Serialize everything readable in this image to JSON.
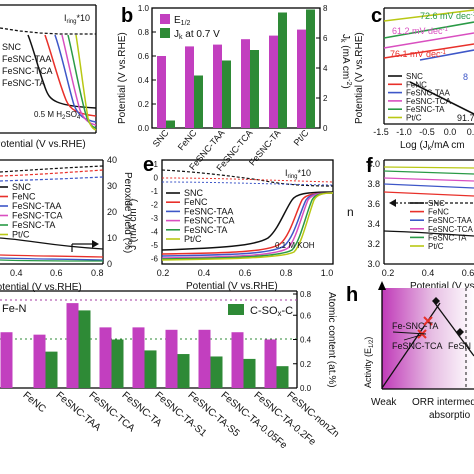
{
  "panel_letters": {
    "b": "b",
    "c": "c",
    "e": "e",
    "f": "f",
    "h": "h"
  },
  "panel_a": {
    "legend": [
      "SNC",
      "FeSNC-TAA",
      "FeSNC-TCA",
      "FeSNC-TA"
    ],
    "annotation": "I",
    "annotation_sub": "ring",
    "annotation_tail": "*10",
    "electrolyte": "0.5 M H",
    "electrolyte_sub": "2",
    "electrolyte_tail": "SO",
    "electrolyte_sub2": "4",
    "xlabel": "Potential (V vs.RHE)"
  },
  "panel_b": {
    "legend_e": "E",
    "legend_e_sub": "1/2",
    "legend_j": "J",
    "legend_j_sub": "k",
    "legend_j_tail": " at 0.7 V",
    "ylabel_left": "Potential (V vs.RHE)",
    "ylabel_right": "J",
    "ylabel_right_sub": "k",
    "ylabel_right_tail": " (mA cm",
    "ylabel_right_sup": "-2",
    "ylabel_right_end": ")",
    "yticks_left": [
      "0.0",
      "0.2",
      "0.4",
      "0.6",
      "0.8",
      "1.0"
    ],
    "yticks_right": [
      "0",
      "2",
      "4",
      "6",
      "8"
    ]
  },
  "panel_c": {
    "slopes": [
      "72.6 mV dec",
      "61.2 mV dec",
      "76.1 mV dec",
      "91.7"
    ],
    "slope_sup": "-1",
    "legend": [
      "SNC",
      "FeNC",
      "FeSNC-TAA",
      "FeSNC-TCA",
      "FeSNC-TA",
      "Pt/C"
    ],
    "xlabel": "Log (J",
    "xlabel_sub": "k",
    "xlabel_tail": "/mA cm",
    "xticks": [
      "-1.5",
      "-1.0",
      "-0.5",
      "0.0",
      "0.5"
    ],
    "ylabel": "Potential (V vs.RHE)",
    "side_label": "8"
  },
  "panel_d": {
    "legend": [
      "SNC",
      "FeNC",
      "FeSNC-TAA",
      "FeSNC-TCA",
      "FeSNC-TA",
      "Pt/C"
    ],
    "xticks": [
      "0.4",
      "0.6",
      "0.8"
    ],
    "xlabel": "Potential (V vs.RHE)",
    "ylabel_right": "Peroxide yield (%)",
    "yticks_right": [
      "0",
      "10",
      "20",
      "30",
      "40"
    ]
  },
  "panel_e": {
    "legend": [
      "SNC",
      "FeNC",
      "FeSNC-TAA",
      "FeSNC-TCA",
      "FeSNC-TA",
      "Pt/C"
    ],
    "annotation": "I",
    "annotation_sub": "ring",
    "annotation_tail": "*10",
    "electrolyte": "0.1 M KOH",
    "xlabel": "Potential (V vs.RHE)",
    "xticks": [
      "0.2",
      "0.4",
      "0.6",
      "0.8",
      "1.0"
    ],
    "ylabel": "J (mA cm",
    "ylabel_sup": "-2",
    "ylabel_end": ")",
    "yticks": [
      "1",
      "0",
      "-1",
      "-2",
      "-3",
      "-4",
      "-5",
      "-6"
    ]
  },
  "panel_f": {
    "legend": [
      "SNC",
      "FeNC",
      "FeSNC-TAA",
      "FeSNC-TCA",
      "FeSNC-TA",
      "Pt/C"
    ],
    "ylabel": "n",
    "yticks": [
      "3.0",
      "3.2",
      "3.4",
      "3.6",
      "3.8",
      "4.0"
    ],
    "xticks": [
      "0.2",
      "0.4",
      "0.6"
    ],
    "xlabel": "Potential (V vs"
  },
  "panel_g": {
    "legend_fen": "Fe-N",
    "legend_csox": "C-SO",
    "legend_csox_sub": "x",
    "legend_csox_tail": "-C",
    "ylabel_right": "Atomic content (at.%)",
    "yticks_right": [
      "0.0",
      "0.2",
      "0.4",
      "0.6",
      "0.8"
    ]
  },
  "panel_h": {
    "ylabel": "Activity (E",
    "ylabel_sub": "1/2",
    "ylabel_end": ")",
    "label_ta": "Fe-SNC-TA",
    "label_tca": "FeSNC-TCA",
    "label_right": "FeSN",
    "x_weak": "Weak",
    "x_mid": "ORR intermed",
    "x_mid2": "absorptio"
  },
  "colors": {
    "SNC": "#111111",
    "FeNC": "#e8302a",
    "FeSNC-TAA": "#3e57c8",
    "FeSNC-TCA": "#d94fc0",
    "FeSNC-TA": "#2a9a46",
    "Pt/C": "#b9c814",
    "magenta_bar": "#c23fbf",
    "green_bar": "#2e8a36"
  },
  "chart_data": [
    {
      "panel": "b",
      "type": "bar",
      "categories": [
        "SNC",
        "FeNC",
        "FeSNC-TAA",
        "FeSNC-TCA",
        "FeSNC-TA",
        "Pt/C"
      ],
      "series": [
        {
          "name": "E1/2",
          "axis": "left",
          "values": [
            0.6,
            0.68,
            0.695,
            0.74,
            0.77,
            0.82
          ]
        },
        {
          "name": "Jk at 0.7 V",
          "axis": "right",
          "values": [
            0.5,
            3.5,
            4.5,
            5.2,
            7.7,
            7.9
          ]
        }
      ],
      "ylim_left": [
        0,
        1.0
      ],
      "ylim_right": [
        0,
        8
      ],
      "legend": "top-left"
    },
    {
      "panel": "g",
      "type": "bar",
      "categories": [
        "FeNC",
        "FeSNC-TAA",
        "FeSNC-TCA",
        "FeSNC-TA",
        "FeSNC-TA-S1",
        "FeSNC-TA-S5",
        "FeSNC-TA-0.05Fe",
        "FeSNC-TA-0.2Fe",
        "FeSNC-nonZn"
      ],
      "series": [
        {
          "name": "Fe-N",
          "axis": "left",
          "values": [
            0.46,
            0.44,
            0.7,
            0.5,
            0.5,
            0.48,
            0.48,
            0.46,
            0.4
          ]
        },
        {
          "name": "C-SOx-C",
          "axis": "right",
          "values": [
            0.0,
            0.3,
            0.64,
            0.4,
            0.31,
            0.28,
            0.26,
            0.24,
            0.18
          ]
        }
      ],
      "ylim_left": [
        0,
        0.8
      ],
      "ylim_right": [
        0,
        0.8
      ],
      "legend": "top-right"
    }
  ]
}
